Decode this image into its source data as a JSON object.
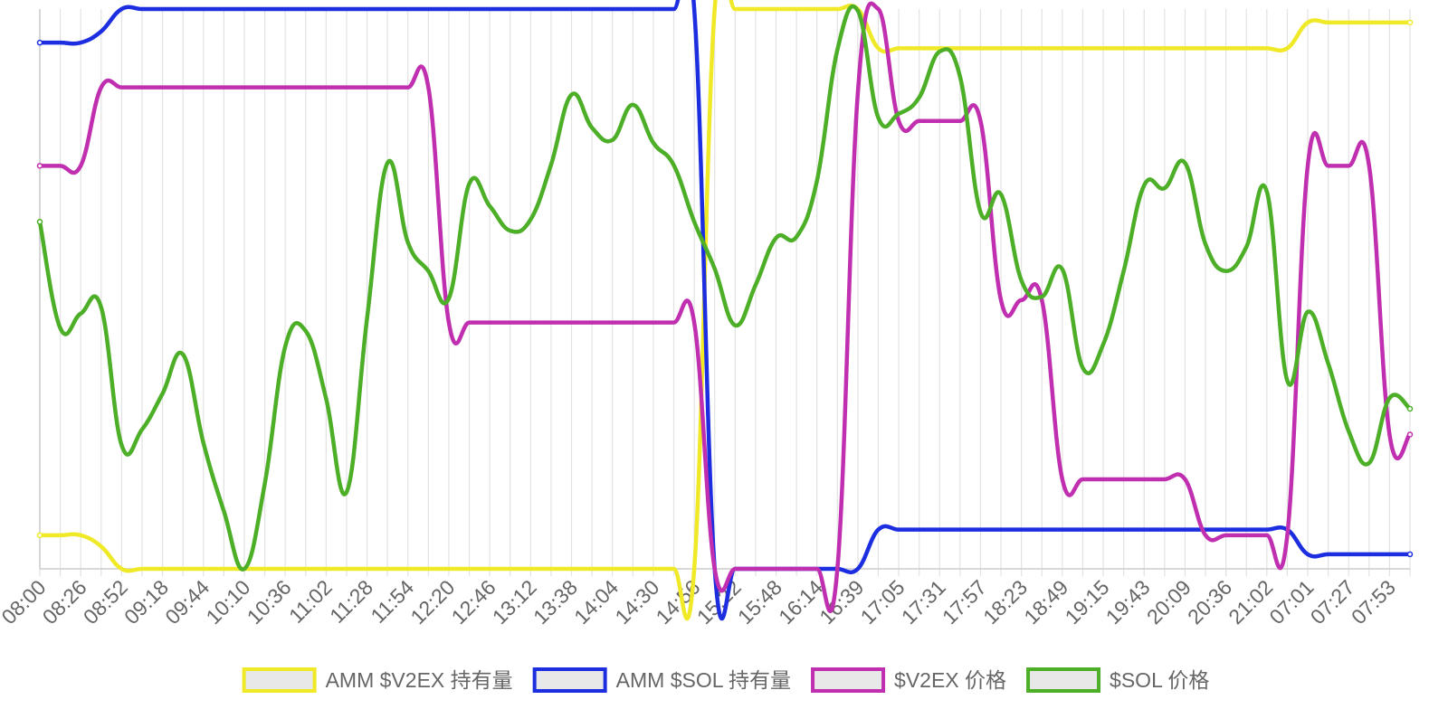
{
  "chart_data": {
    "type": "line",
    "categories": [
      "08:00",
      null,
      "08:26",
      null,
      "08:52",
      null,
      "09:18",
      null,
      "09:44",
      null,
      "10:10",
      null,
      "10:36",
      null,
      "11:02",
      null,
      "11:28",
      null,
      "11:54",
      null,
      "12:20",
      null,
      "12:46",
      null,
      "13:12",
      null,
      "13:38",
      null,
      "14:04",
      null,
      "14:30",
      null,
      "14:56",
      null,
      "15:22",
      null,
      "15:48",
      null,
      "16:14",
      null,
      "16:39",
      null,
      "17:05",
      null,
      "17:31",
      null,
      "17:57",
      null,
      "18:23",
      null,
      "18:49",
      null,
      "19:15",
      null,
      "19:43",
      null,
      "20:09",
      null,
      "20:36",
      null,
      "21:02",
      null,
      "07:01",
      null,
      "07:27",
      null,
      "07:53",
      null
    ],
    "ylim": [
      0,
      100
    ],
    "grid": true,
    "legend": "bottom",
    "series": [
      {
        "name": "AMM $V2EX 持有量",
        "color": "#f0e928",
        "values": [
          6,
          6,
          6,
          4,
          0,
          0,
          0,
          0,
          0,
          0,
          0,
          0,
          0,
          0,
          0,
          0,
          0,
          0,
          0,
          0,
          0,
          0,
          0,
          0,
          0,
          0,
          0,
          0,
          0,
          0,
          0,
          0,
          0,
          100,
          100,
          100,
          100,
          100,
          100,
          100,
          100,
          93,
          93,
          93,
          93,
          93,
          93,
          93,
          93,
          93,
          93,
          93,
          93,
          93,
          93,
          93,
          93,
          93,
          93,
          93,
          93,
          93,
          97.6,
          97.6,
          97.6,
          97.6,
          97.6,
          97.6
        ]
      },
      {
        "name": "AMM $SOL 持有量",
        "color": "#1c2ee0",
        "values": [
          94,
          94,
          94,
          96,
          100,
          100,
          100,
          100,
          100,
          100,
          100,
          100,
          100,
          100,
          100,
          100,
          100,
          100,
          100,
          100,
          100,
          100,
          100,
          100,
          100,
          100,
          100,
          100,
          100,
          100,
          100,
          100,
          100,
          0,
          0,
          0,
          0,
          0,
          0,
          0,
          0,
          7,
          7,
          7,
          7,
          7,
          7,
          7,
          7,
          7,
          7,
          7,
          7,
          7,
          7,
          7,
          7,
          7,
          7,
          7,
          7,
          7,
          2.6,
          2.6,
          2.6,
          2.6,
          2.6,
          2.6
        ]
      },
      {
        "name": "$V2EX 价格",
        "color": "#c02fb0",
        "values": [
          72,
          72,
          72,
          86,
          86,
          86,
          86,
          86,
          86,
          86,
          86,
          86,
          86,
          86,
          86,
          86,
          86,
          86,
          86,
          86,
          44,
          44,
          44,
          44,
          44,
          44,
          44,
          44,
          44,
          44,
          44,
          44,
          44,
          0,
          0,
          0,
          0,
          0,
          0,
          0,
          85,
          100,
          80,
          80,
          80,
          80,
          80,
          48,
          48,
          48,
          16,
          16,
          16,
          16,
          16,
          16,
          16,
          6,
          6,
          6,
          6,
          6,
          72,
          72,
          72,
          72,
          24,
          24
        ]
      },
      {
        "name": "$SOL 价格",
        "color": "#4caf27",
        "values": [
          62.0,
          43.0,
          45.6,
          46.7,
          22.1,
          24.9,
          31.3,
          38.3,
          22.5,
          10.3,
          0,
          15.2,
          39.7,
          42.5,
          30.4,
          13.7,
          44.7,
          72.5,
          58.3,
          53.2,
          48.3,
          68.8,
          64.8,
          60.4,
          62.4,
          72.2,
          84.7,
          78.8,
          76.6,
          82.9,
          76.1,
          72.1,
          62.0,
          53.6,
          43.5,
          50.7,
          59.1,
          59.3,
          69.3,
          92.7,
          99.7,
          80.6,
          81.3,
          84.2,
          92.4,
          87.9,
          63.7,
          66.9,
          51.5,
          48.6,
          53.5,
          35.9,
          40.1,
          53.2,
          68.5,
          68.0,
          72.5,
          58.0,
          53.2,
          57.5,
          67.4,
          33.6,
          45.9,
          36.7,
          24.6,
          18.9,
          30.5,
          28.6
        ]
      }
    ]
  }
}
